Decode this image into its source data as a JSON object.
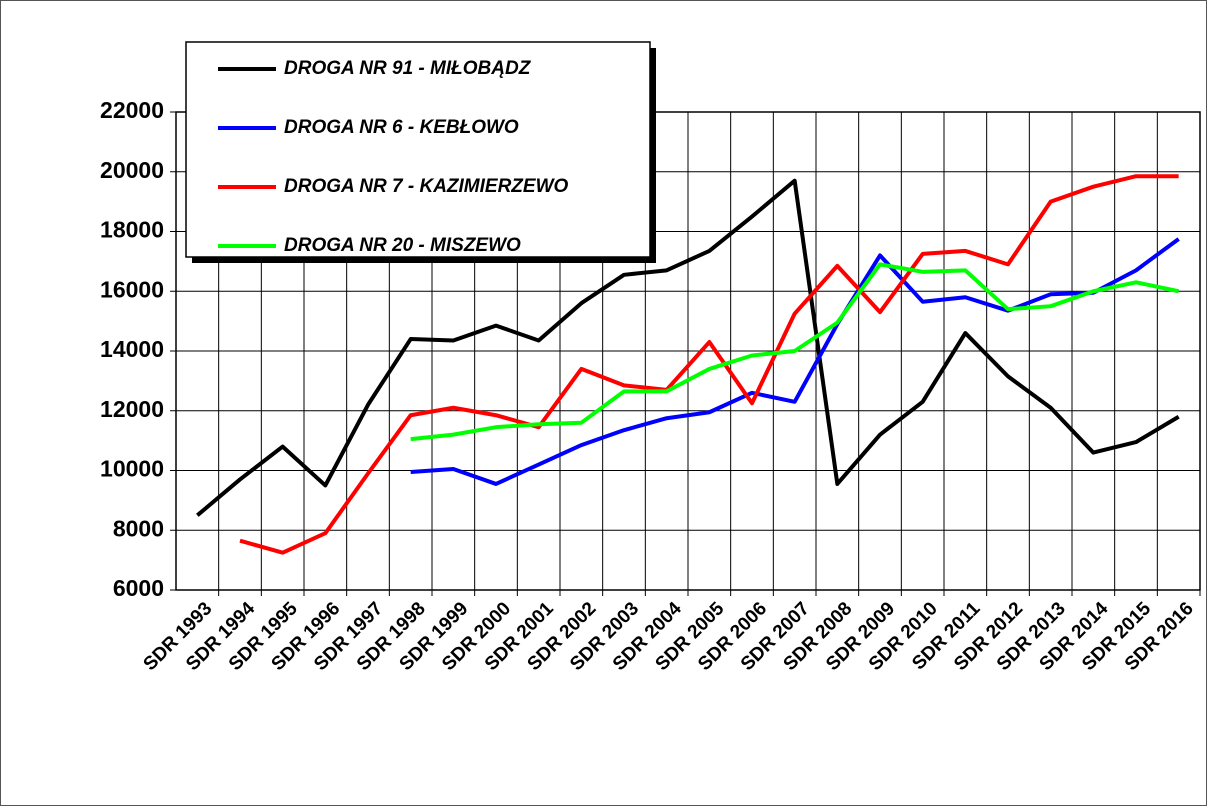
{
  "chart_data": {
    "type": "line",
    "categories": [
      "SDR 1993",
      "SDR 1994",
      "SDR 1995",
      "SDR 1996",
      "SDR 1997",
      "SDR 1998",
      "SDR 1999",
      "SDR 2000",
      "SDR 2001",
      "SDR 2002",
      "SDR 2003",
      "SDR 2004",
      "SDR 2005",
      "SDR 2006",
      "SDR 2007",
      "SDR 2008",
      "SDR 2009",
      "SDR 2010",
      "SDR 2011",
      "SDR 2012",
      "SDR 2013",
      "SDR 2014",
      "SDR 2015",
      "SDR 2016"
    ],
    "series": [
      {
        "name": "DROGA NR 91 - MIŁOBĄDZ",
        "color": "#000000",
        "values": [
          8500,
          9700,
          10800,
          9500,
          12200,
          14400,
          14350,
          14850,
          14350,
          15600,
          16550,
          16700,
          17350,
          18500,
          19700,
          9550,
          11200,
          12300,
          14600,
          13150,
          12100,
          10600,
          10950,
          11800
        ]
      },
      {
        "name": "DROGA NR 6 - KEBŁOWO",
        "color": "#0000ff",
        "values": [
          null,
          null,
          null,
          null,
          null,
          9950,
          10050,
          9550,
          10200,
          10850,
          11350,
          11750,
          11950,
          12600,
          12300,
          14900,
          17200,
          15650,
          15800,
          15350,
          15900,
          15950,
          16700,
          17750
        ]
      },
      {
        "name": "DROGA NR 7 - KAZIMIERZEWO",
        "color": "#ff0000",
        "values": [
          null,
          7650,
          7250,
          7900,
          9900,
          11850,
          12100,
          11850,
          11450,
          13400,
          12850,
          12700,
          14300,
          12250,
          15250,
          16850,
          15300,
          17250,
          17350,
          16900,
          19000,
          19500,
          19850,
          19850
        ]
      },
      {
        "name": "DROGA NR 20 - MISZEWO",
        "color": "#00ff00",
        "values": [
          null,
          null,
          null,
          null,
          null,
          11050,
          11200,
          11450,
          11550,
          11600,
          12650,
          12650,
          13400,
          13850,
          14000,
          14950,
          16900,
          16650,
          16700,
          15400,
          15500,
          16000,
          16300,
          16000
        ]
      }
    ],
    "ylim": [
      6000,
      22000
    ],
    "yticks": [
      6000,
      8000,
      10000,
      12000,
      14000,
      16000,
      18000,
      20000,
      22000
    ],
    "grid": true
  }
}
